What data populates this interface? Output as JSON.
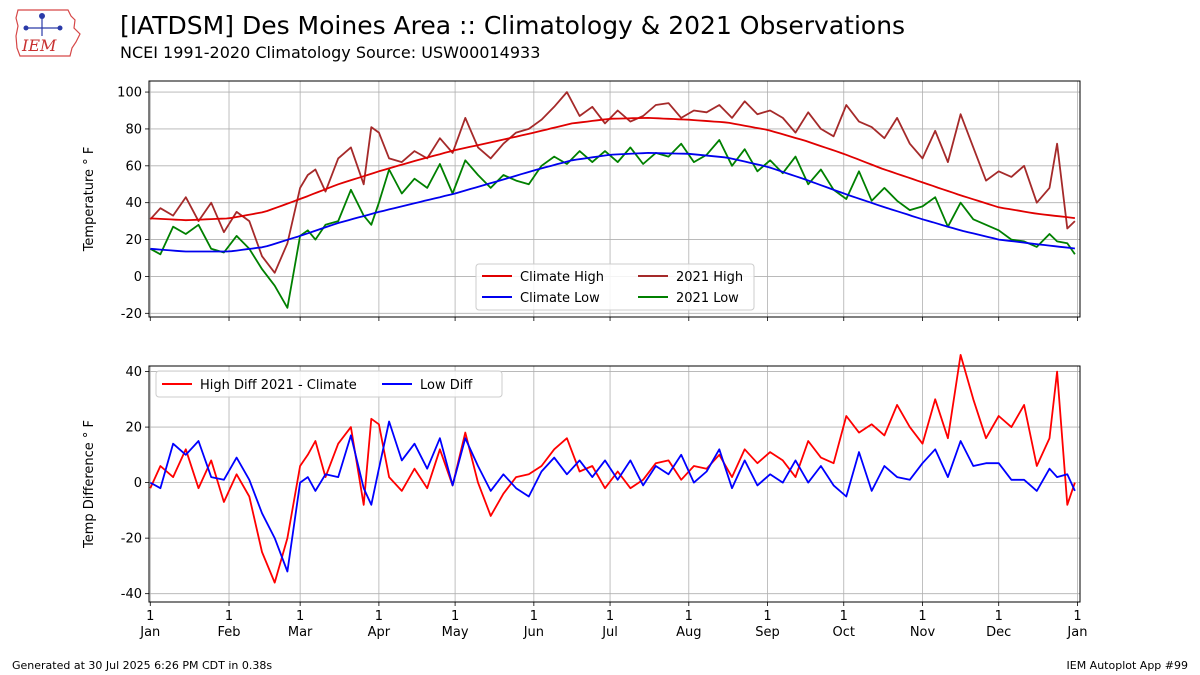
{
  "header": {
    "title": "[IATDSM] Des Moines Area :: Climatology & 2021 Observations",
    "subtitle": "NCEI 1991-2020 Climatology Source: USW00014933",
    "logo_text": "IEM"
  },
  "footer": {
    "generated": "Generated at 30 Jul 2025 6:26 PM CDT in 0.38s",
    "app": "IEM Autoplot App #99"
  },
  "colors": {
    "climate_high": "#e00000",
    "climate_low": "#0000ee",
    "obs_high": "#a52a2a",
    "obs_low": "#008000",
    "diff_high": "#ff0000",
    "diff_low": "#0000ff",
    "grid": "#b0b0b0"
  },
  "chart_data": [
    {
      "type": "line",
      "ylabel": "Temperature $^\\circ$F",
      "ylim": [
        -22,
        106
      ],
      "yticks": [
        -20,
        0,
        20,
        40,
        60,
        80,
        100
      ],
      "xlim": [
        0.5,
        367
      ],
      "xticks": [
        1,
        32,
        60,
        91,
        121,
        152,
        182,
        213,
        244,
        274,
        305,
        335,
        366
      ],
      "grid": true,
      "legend_location": "lower-center",
      "legend": [
        "Climate High",
        "Climate Low",
        "2021 High",
        "2021 Low"
      ],
      "climate": {
        "doy": [
          1,
          15,
          32,
          46,
          60,
          75,
          91,
          106,
          121,
          136,
          152,
          167,
          182,
          197,
          213,
          228,
          244,
          259,
          274,
          289,
          305,
          320,
          335,
          350,
          366
        ],
        "high": [
          31.5,
          30.5,
          31.5,
          35,
          42,
          50,
          57,
          63,
          68.5,
          73,
          78,
          83,
          85.5,
          86,
          85,
          83.5,
          79.5,
          73.5,
          66.5,
          58.5,
          51,
          44,
          37.5,
          34,
          31.5
        ],
        "low": [
          15,
          13.5,
          13.5,
          16,
          22,
          29,
          35,
          40,
          45,
          51,
          57.5,
          63,
          66,
          67,
          66.5,
          64.5,
          59.5,
          52.5,
          45,
          38,
          31,
          25,
          20,
          17.5,
          15
        ]
      },
      "observed": {
        "doy": [
          1,
          5,
          10,
          15,
          20,
          25,
          30,
          35,
          40,
          45,
          50,
          55,
          60,
          63,
          66,
          70,
          75,
          80,
          85,
          88,
          91,
          95,
          100,
          105,
          110,
          115,
          120,
          125,
          130,
          135,
          140,
          145,
          150,
          155,
          160,
          165,
          170,
          175,
          180,
          185,
          190,
          195,
          200,
          205,
          210,
          215,
          220,
          225,
          230,
          235,
          240,
          245,
          250,
          255,
          260,
          265,
          270,
          275,
          280,
          285,
          290,
          295,
          300,
          305,
          310,
          315,
          320,
          325,
          330,
          335,
          340,
          345,
          350,
          355,
          358,
          362,
          365
        ],
        "high": [
          31,
          37,
          33,
          43,
          30,
          40,
          24,
          35,
          30,
          11,
          2,
          18,
          48,
          55,
          58,
          46,
          64,
          70,
          50,
          81,
          78,
          64,
          62,
          68,
          64,
          75,
          67,
          86,
          70,
          64,
          72,
          78,
          80,
          85,
          92,
          100,
          87,
          92,
          83,
          90,
          84,
          87,
          93,
          94,
          86,
          90,
          89,
          93,
          86,
          95,
          88,
          90,
          86,
          78,
          89,
          80,
          76,
          93,
          84,
          81,
          75,
          86,
          72,
          64,
          79,
          62,
          88,
          70,
          52,
          57,
          54,
          60,
          40,
          48,
          72,
          26,
          30
        ],
        "low": [
          15,
          12,
          27,
          23,
          28,
          15,
          13,
          22,
          15,
          4,
          -5,
          -17,
          22,
          25,
          20,
          28,
          30,
          47,
          33,
          28,
          40,
          58,
          45,
          53,
          48,
          61,
          45,
          63,
          55,
          48,
          55,
          52,
          50,
          60,
          65,
          61,
          68,
          62,
          68,
          62,
          70,
          61,
          67,
          65,
          72,
          62,
          66,
          74,
          60,
          69,
          57,
          63,
          56,
          65,
          50,
          58,
          47,
          42,
          57,
          41,
          48,
          41,
          36,
          38,
          43,
          27,
          40,
          31,
          28,
          25,
          20,
          19,
          16,
          23,
          19,
          18,
          12
        ]
      }
    },
    {
      "type": "line",
      "ylabel": "Temp Difference $^\\circ$F",
      "ylim": [
        -43,
        42
      ],
      "yticks": [
        -40,
        -20,
        0,
        20,
        40
      ],
      "xlim": [
        0.5,
        367
      ],
      "xticks": [
        1,
        32,
        60,
        91,
        121,
        152,
        182,
        213,
        244,
        274,
        305,
        335,
        366
      ],
      "xticklabels": [
        "1\nJan",
        "1\nFeb",
        "1\nMar",
        "1\nApr",
        "1\nMay",
        "1\nJun",
        "1\nJul",
        "1\nAug",
        "1\nSep",
        "1\nOct",
        "1\nNov",
        "1\nDec",
        "1\nJan"
      ],
      "grid": true,
      "legend_location": "upper-left",
      "legend": [
        "High Diff 2021 - Climate",
        "Low Diff"
      ],
      "series": [
        {
          "name": "High Diff 2021 - Climate",
          "doy": [
            1,
            5,
            10,
            15,
            20,
            25,
            30,
            35,
            40,
            45,
            50,
            55,
            60,
            63,
            66,
            70,
            75,
            80,
            85,
            88,
            91,
            95,
            100,
            105,
            110,
            115,
            120,
            125,
            130,
            135,
            140,
            145,
            150,
            155,
            160,
            165,
            170,
            175,
            180,
            185,
            190,
            195,
            200,
            205,
            210,
            215,
            220,
            225,
            230,
            235,
            240,
            245,
            250,
            255,
            260,
            265,
            270,
            275,
            280,
            285,
            290,
            295,
            300,
            305,
            310,
            315,
            320,
            325,
            330,
            335,
            340,
            345,
            350,
            355,
            358,
            362,
            365
          ],
          "values": [
            -2,
            6,
            2,
            12,
            -2,
            8,
            -7,
            3,
            -5,
            -25,
            -36,
            -20,
            6,
            10,
            15,
            2,
            14,
            20,
            -8,
            23,
            21,
            2,
            -3,
            5,
            -2,
            12,
            -1,
            18,
            0,
            -12,
            -4,
            2,
            3,
            6,
            12,
            16,
            4,
            6,
            -2,
            4,
            -2,
            1,
            7,
            8,
            1,
            6,
            5,
            10,
            2,
            12,
            7,
            11,
            8,
            2,
            15,
            9,
            7,
            24,
            18,
            21,
            17,
            28,
            20,
            14,
            30,
            16,
            46,
            30,
            16,
            24,
            20,
            28,
            6,
            16,
            40,
            -8,
            0
          ]
        },
        {
          "name": "Low Diff",
          "doy": [
            1,
            5,
            10,
            15,
            20,
            25,
            30,
            35,
            40,
            45,
            50,
            55,
            60,
            63,
            66,
            70,
            75,
            80,
            85,
            88,
            91,
            95,
            100,
            105,
            110,
            115,
            120,
            125,
            130,
            135,
            140,
            145,
            150,
            155,
            160,
            165,
            170,
            175,
            180,
            185,
            190,
            195,
            200,
            205,
            210,
            215,
            220,
            225,
            230,
            235,
            240,
            245,
            250,
            255,
            260,
            265,
            270,
            275,
            280,
            285,
            290,
            295,
            300,
            305,
            310,
            315,
            320,
            325,
            330,
            335,
            340,
            345,
            350,
            355,
            358,
            362,
            365
          ],
          "values": [
            0,
            -2,
            14,
            10,
            15,
            2,
            1,
            9,
            1,
            -11,
            -20,
            -32,
            0,
            2,
            -3,
            3,
            2,
            17,
            -2,
            -8,
            5,
            22,
            8,
            14,
            5,
            16,
            -1,
            16,
            6,
            -3,
            3,
            -2,
            -5,
            4,
            9,
            3,
            8,
            2,
            8,
            1,
            8,
            -1,
            6,
            3,
            10,
            0,
            4,
            12,
            -2,
            8,
            -1,
            3,
            0,
            8,
            0,
            6,
            -1,
            -5,
            11,
            -3,
            6,
            2,
            1,
            7,
            12,
            2,
            15,
            6,
            7,
            7,
            1,
            1,
            -3,
            5,
            2,
            3,
            -3
          ]
        }
      ]
    }
  ]
}
